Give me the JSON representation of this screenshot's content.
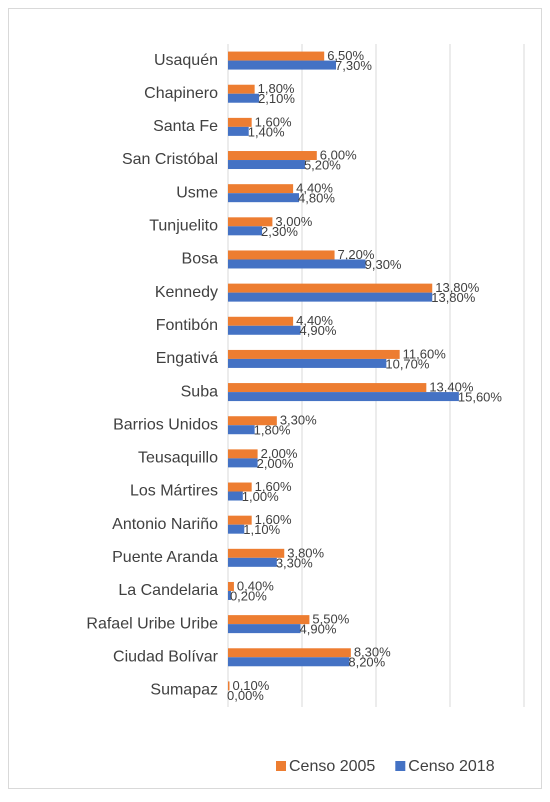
{
  "chart_data": {
    "type": "bar",
    "orientation": "horizontal",
    "categories": [
      "Usaquén",
      "Chapinero",
      "Santa Fe",
      "San Cristóbal",
      "Usme",
      "Tunjuelito",
      "Bosa",
      "Kennedy",
      "Fontibón",
      "Engativá",
      "Suba",
      "Barrios Unidos",
      "Teusaquillo",
      "Los Mártires",
      "Antonio Nariño",
      "Puente Aranda",
      "La Candelaria",
      "Rafael Uribe Uribe",
      "Ciudad Bolívar",
      "Sumapaz"
    ],
    "series": [
      {
        "name": "Censo 2005",
        "color": "#ed7d31",
        "values": [
          6.5,
          1.8,
          1.6,
          6.0,
          4.4,
          3.0,
          7.2,
          13.8,
          4.4,
          11.6,
          13.4,
          3.3,
          2.0,
          1.6,
          1.6,
          3.8,
          0.4,
          5.5,
          8.3,
          0.1
        ],
        "value_labels": [
          "6,50%",
          "1,80%",
          "1,60%",
          "6,00%",
          "4,40%",
          "3,00%",
          "7,20%",
          "13,80%",
          "4,40%",
          "11,60%",
          "13,40%",
          "3,30%",
          "2,00%",
          "1,60%",
          "1,60%",
          "3,80%",
          "0,40%",
          "5,50%",
          "8,30%",
          "0,10%"
        ]
      },
      {
        "name": "Censo 2018",
        "color": "#4472c4",
        "values": [
          7.3,
          2.1,
          1.4,
          5.2,
          4.8,
          2.3,
          9.3,
          13.8,
          4.9,
          10.7,
          15.6,
          1.8,
          2.0,
          1.0,
          1.1,
          3.3,
          0.2,
          4.9,
          8.2,
          0.0
        ],
        "value_labels": [
          "7,30%",
          "2,10%",
          "1,40%",
          "5,20%",
          "4,80%",
          "2,30%",
          "9,30%",
          "13,80%",
          "4,90%",
          "10,70%",
          "15,60%",
          "1,80%",
          "2,00%",
          "1,00%",
          "1,10%",
          "3,30%",
          "0,20%",
          "4,90%",
          "8,20%",
          "0,00%"
        ]
      }
    ],
    "xlim": [
      0,
      20
    ],
    "xticks": [
      0,
      5,
      10,
      15,
      20
    ],
    "grid": true,
    "legend": "bottom"
  }
}
